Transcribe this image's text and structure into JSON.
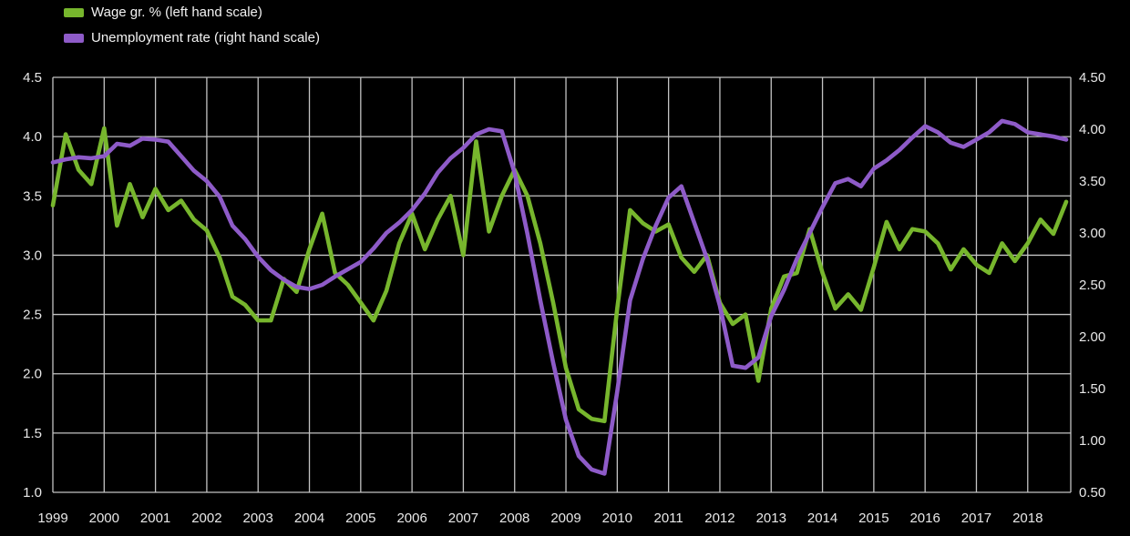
{
  "legend": [
    {
      "label": "Wage gr. % (left hand scale)",
      "color": "#77b62d"
    },
    {
      "label": "Unemployment rate (right hand scale)",
      "color": "#8e5bc8"
    }
  ],
  "chart_data": {
    "type": "line",
    "title": "",
    "xlabel": "",
    "ylabel_left": "",
    "ylabel_right": "",
    "background_color": "#000000",
    "grid": true,
    "grid_color": "#c3c3c3",
    "text_color": "#e8e8e8",
    "legend_position": "top-left",
    "x_start": 1999,
    "x_step_years": 0.25,
    "x_end": 2018.75,
    "x_tick_labels": [
      "1999",
      "2000",
      "2001",
      "2002",
      "2003",
      "2004",
      "2005",
      "2006",
      "2007",
      "2008",
      "2009",
      "2010",
      "2011",
      "2012",
      "2013",
      "2014",
      "2015",
      "2016",
      "2017",
      "2018"
    ],
    "left_axis": {
      "ylim": [
        1.0,
        4.5
      ],
      "tick_labels": [
        "4.5",
        "4.0",
        "3.5",
        "3.0",
        "2.5",
        "2.0",
        "1.5",
        "1.0"
      ]
    },
    "right_axis": {
      "ylim": [
        0.5,
        4.5
      ],
      "tick_labels": [
        "4.50",
        "4.00",
        "3.50",
        "3.00",
        "2.50",
        "2.00",
        "1.50",
        "1.00",
        "0.50"
      ]
    },
    "series": [
      {
        "name": "Wage gr. % (left hand scale)",
        "axis": "left",
        "color": "#77b62d",
        "values": [
          3.42,
          4.02,
          3.72,
          3.6,
          4.07,
          3.25,
          3.6,
          3.32,
          3.56,
          3.38,
          3.46,
          3.3,
          3.21,
          2.98,
          2.65,
          2.58,
          2.45,
          2.45,
          2.8,
          2.69,
          3.05,
          3.35,
          2.85,
          2.75,
          2.6,
          2.45,
          2.7,
          3.1,
          3.35,
          3.05,
          3.3,
          3.5,
          3.0,
          3.96,
          3.2,
          3.5,
          3.72,
          3.5,
          3.1,
          2.6,
          2.05,
          1.7,
          1.62,
          1.6,
          2.55,
          3.38,
          3.27,
          3.2,
          3.26,
          2.98,
          2.86,
          3.0,
          2.6,
          2.42,
          2.5,
          1.94,
          2.55,
          2.82,
          2.85,
          3.22,
          2.85,
          2.55,
          2.67,
          2.54,
          2.9,
          3.28,
          3.05,
          3.22,
          3.2,
          3.1,
          2.88,
          3.05,
          2.92,
          2.85,
          3.1,
          2.95,
          3.1,
          3.3,
          3.18,
          3.45
        ]
      },
      {
        "name": "Unemployment rate (right hand scale)",
        "axis": "right",
        "color": "#8e5bc8",
        "values": [
          3.68,
          3.71,
          3.73,
          3.72,
          3.74,
          3.86,
          3.84,
          3.91,
          3.9,
          3.88,
          3.74,
          3.6,
          3.5,
          3.35,
          3.07,
          2.94,
          2.77,
          2.64,
          2.55,
          2.48,
          2.46,
          2.5,
          2.58,
          2.65,
          2.72,
          2.85,
          3.0,
          3.1,
          3.22,
          3.38,
          3.58,
          3.72,
          3.82,
          3.95,
          4.0,
          3.98,
          3.58,
          2.99,
          2.35,
          1.75,
          1.2,
          0.85,
          0.72,
          0.68,
          1.47,
          2.35,
          2.75,
          3.07,
          3.34,
          3.45,
          3.1,
          2.75,
          2.3,
          1.72,
          1.7,
          1.8,
          2.2,
          2.45,
          2.75,
          3.0,
          3.25,
          3.48,
          3.52,
          3.45,
          3.62,
          3.7,
          3.8,
          3.92,
          4.03,
          3.97,
          3.87,
          3.83,
          3.9,
          3.97,
          4.08,
          4.05,
          3.97,
          3.95,
          3.93,
          3.9
        ]
      }
    ]
  }
}
